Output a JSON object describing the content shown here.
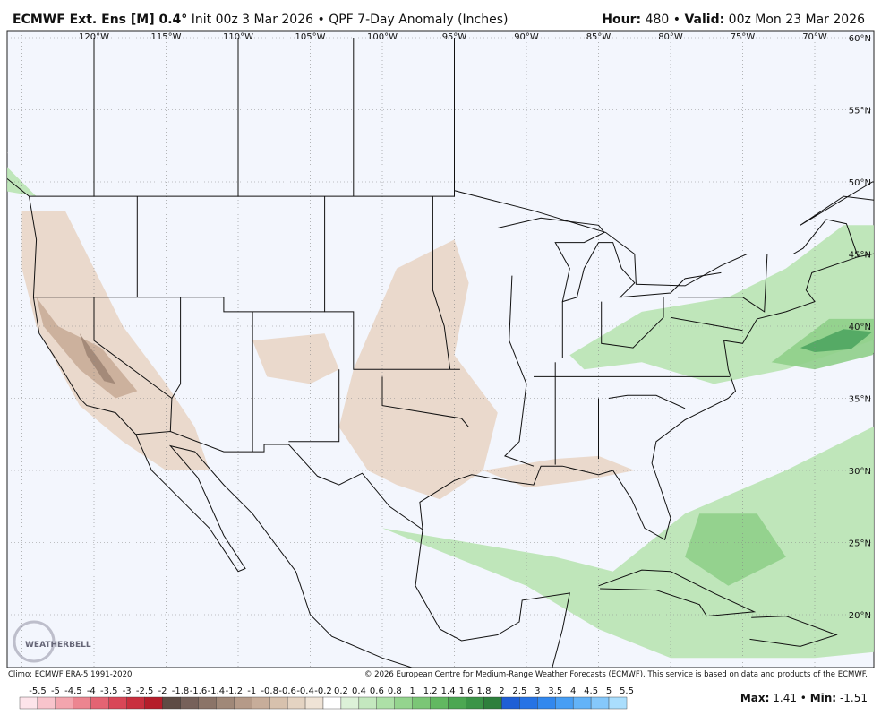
{
  "header": {
    "model": "ECMWF Ext. Ens [M] 0.4°",
    "init": "Init 00z 3 Mar 2026",
    "separator": "•",
    "product": "QPF 7-Day Anomaly (Inches)",
    "hour_label": "Hour:",
    "hour": "480",
    "valid_label": "Valid:",
    "valid": "00z Mon 23 Mar 2026"
  },
  "map": {
    "longitude_labels": [
      "120°W",
      "115°W",
      "110°W",
      "105°W",
      "100°W",
      "95°W",
      "90°W",
      "85°W",
      "80°W",
      "75°W",
      "70°W"
    ],
    "latitude_labels": [
      "60°N",
      "55°N",
      "50°N",
      "45°N",
      "40°N",
      "35°N",
      "30°N",
      "25°N",
      "20°N"
    ],
    "logo": "WEATHERBELL"
  },
  "footer": {
    "climo": "Climo: ECMWF ERA-5 1991-2020",
    "copyright": "© 2026 European Centre for Medium-Range Weather Forecasts (ECMWF). This service is based on data and products of the ECMWF."
  },
  "colorbar": {
    "labels": [
      -5.5,
      -5,
      -4.5,
      -4,
      -3.5,
      -3,
      -2.5,
      -2,
      -1.8,
      -1.6,
      -1.4,
      -1.2,
      -1,
      -0.8,
      -0.6,
      -0.4,
      -0.2,
      0.2,
      0.4,
      0.6,
      0.8,
      1,
      1.2,
      1.4,
      1.6,
      1.8,
      2,
      2.5,
      3,
      3.5,
      4,
      4.5,
      5,
      5.5
    ]
  },
  "stats": {
    "max_label": "Max:",
    "max": 1.41,
    "separator": "•",
    "min_label": "Min:",
    "min": -1.51
  }
}
